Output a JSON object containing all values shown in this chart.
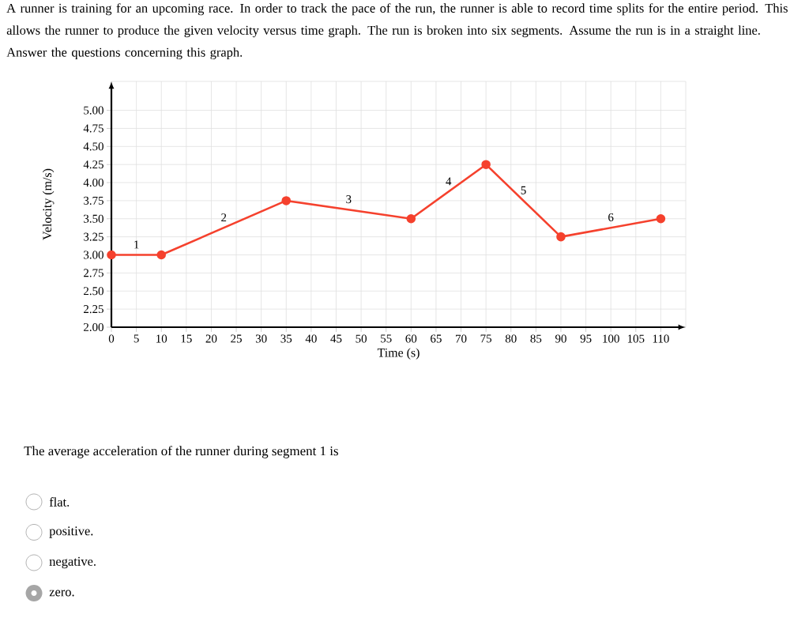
{
  "chart_data": {
    "type": "line",
    "title": "A runner is training for an upcoming race. In order to track the pace of the run, the runner is able to record time splits for the entire period. This allows the runner to produce the given velocity versus time graph. The run is broken into six segments. Assume the run is in a straight line. Answer the questions concerning this graph.",
    "xlabel": "Time (s)",
    "ylabel": "Velocity (m/s)",
    "x": [
      0,
      10,
      35,
      60,
      75,
      90,
      110
    ],
    "values": [
      3.0,
      3.0,
      3.75,
      3.5,
      4.25,
      3.25,
      3.5
    ],
    "color": "#f5412d",
    "marker": "circle",
    "line_style": "solid",
    "grid": true,
    "xlim": [
      0,
      115
    ],
    "ylim": [
      2,
      5.4
    ],
    "xticks": [
      0,
      5,
      10,
      15,
      20,
      25,
      30,
      35,
      40,
      45,
      50,
      55,
      60,
      65,
      70,
      75,
      80,
      85,
      90,
      95,
      100,
      105,
      110
    ],
    "yticks": [
      {
        "value": 2,
        "label": "2.00"
      },
      {
        "value": 2.25,
        "label": "2.25"
      },
      {
        "value": 2.5,
        "label": "2.50"
      },
      {
        "value": 2.75,
        "label": "2.75"
      },
      {
        "value": 3,
        "label": "3.00"
      },
      {
        "value": 3.25,
        "label": "3.25"
      },
      {
        "value": 3.5,
        "label": "3.50"
      },
      {
        "value": 3.75,
        "label": "3.75"
      },
      {
        "value": 4,
        "label": "4.00"
      },
      {
        "value": 4.25,
        "label": "4.25"
      },
      {
        "value": 4.5,
        "label": "4.50"
      },
      {
        "value": 4.75,
        "label": "4.75"
      },
      {
        "value": 5,
        "label": "5.00"
      }
    ],
    "annotations": [
      "1",
      "2",
      "3",
      "4",
      "5",
      "6",
      "The average acceleration of the runner during segment 1 is",
      "flat.",
      "positive.",
      "negative.",
      "zero."
    ]
  }
}
